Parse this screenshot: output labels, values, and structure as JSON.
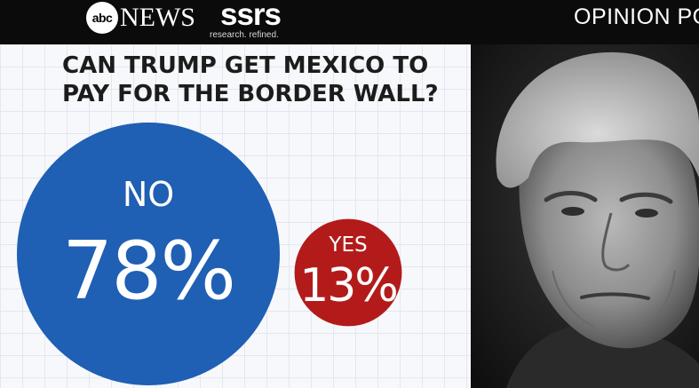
{
  "header": {
    "abc_logo_text": "abc",
    "news_text": "NEWS",
    "ssrs_text": "ssrs",
    "ssrs_tagline": "research. refined.",
    "section_label": "OPINION POLL"
  },
  "chart_data": {
    "type": "bubble",
    "title_lines": [
      "CAN TRUMP GET MEXICO TO",
      "PAY FOR THE BORDER WALL?"
    ],
    "series": [
      {
        "name": "NO",
        "value": 78,
        "display": "78%",
        "color": "#1f5fb4"
      },
      {
        "name": "YES",
        "value": 13,
        "display": "13%",
        "color": "#b31b1b"
      }
    ],
    "unit": "%"
  },
  "photo": {
    "subject_icon": "portrait-photo"
  }
}
